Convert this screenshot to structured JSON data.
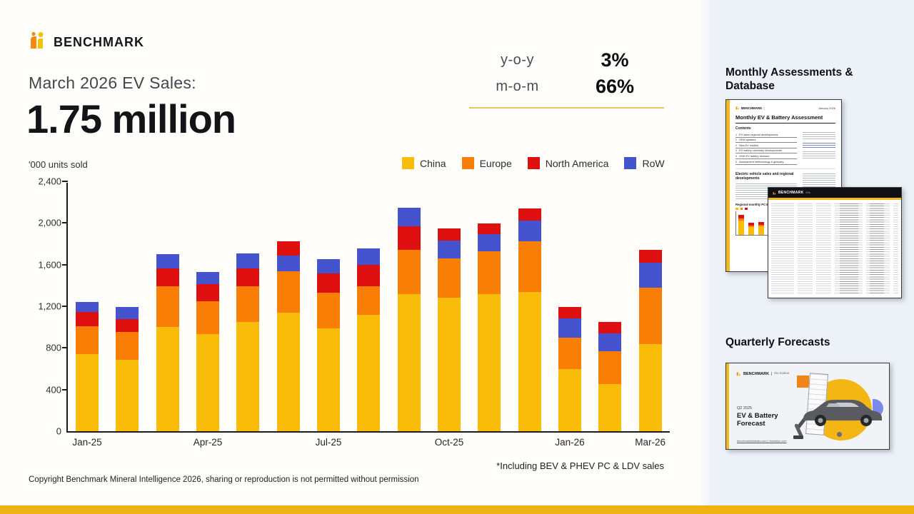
{
  "brand": {
    "name": "BENCHMARK",
    "icon_orange": "#f28a14",
    "icon_yellow": "#f7c10a"
  },
  "header": {
    "title_line": "March 2026 EV Sales:",
    "headline": "1.75 million"
  },
  "stats": {
    "rows": [
      {
        "label": "y-o-y",
        "value": "3%"
      },
      {
        "label": "m-o-m",
        "value": "66%"
      }
    ],
    "divider_color": "#ecc35c"
  },
  "chart_data": {
    "type": "bar",
    "stacked": true,
    "unit_label": "'000 units sold",
    "ylim": [
      0,
      2400
    ],
    "y_ticks": [
      {
        "value": 0,
        "label": "0"
      },
      {
        "value": 400,
        "label": "400"
      },
      {
        "value": 800,
        "label": "800"
      },
      {
        "value": 1200,
        "label": "1,200"
      },
      {
        "value": 1600,
        "label": "1,600"
      },
      {
        "value": 2000,
        "label": "2,000"
      },
      {
        "value": 2400,
        "label": "2,400"
      }
    ],
    "legend": [
      "China",
      "Europe",
      "North America",
      "RoW"
    ],
    "series_colors": {
      "China": "#f9bc08",
      "Europe": "#f87e06",
      "North America": "#df1010",
      "RoW": "#4653ce"
    },
    "note": "segments listed bottom-to-top as drawn",
    "bars": [
      {
        "label": "Jan-25",
        "segments": [
          [
            "China",
            740
          ],
          [
            "Europe",
            270
          ],
          [
            "North America",
            135
          ],
          [
            "RoW",
            95
          ]
        ]
      },
      {
        "label": "Feb-25",
        "segments": [
          [
            "China",
            685
          ],
          [
            "Europe",
            265
          ],
          [
            "North America",
            130
          ],
          [
            "RoW",
            110
          ]
        ]
      },
      {
        "label": "Mar-25",
        "segments": [
          [
            "China",
            1000
          ],
          [
            "Europe",
            395
          ],
          [
            "North America",
            170
          ],
          [
            "RoW",
            135
          ]
        ]
      },
      {
        "label": "Apr-25",
        "segments": [
          [
            "China",
            930
          ],
          [
            "Europe",
            320
          ],
          [
            "North America",
            160
          ],
          [
            "RoW",
            120
          ]
        ]
      },
      {
        "label": "May-25",
        "segments": [
          [
            "China",
            1050
          ],
          [
            "Europe",
            340
          ],
          [
            "North America",
            175
          ],
          [
            "RoW",
            145
          ]
        ]
      },
      {
        "label": "Jun-25",
        "segments": [
          [
            "China",
            1135
          ],
          [
            "Europe",
            400
          ],
          [
            "RoW",
            150
          ],
          [
            "North America",
            140
          ]
        ]
      },
      {
        "label": "Jul-25",
        "segments": [
          [
            "China",
            990
          ],
          [
            "Europe",
            340
          ],
          [
            "North America",
            185
          ],
          [
            "RoW",
            135
          ]
        ]
      },
      {
        "label": "Aug-25",
        "segments": [
          [
            "China",
            1120
          ],
          [
            "Europe",
            270
          ],
          [
            "North America",
            205
          ],
          [
            "RoW",
            160
          ]
        ]
      },
      {
        "label": "Sep-25",
        "segments": [
          [
            "China",
            1320
          ],
          [
            "Europe",
            420
          ],
          [
            "North America",
            230
          ],
          [
            "RoW",
            175
          ]
        ]
      },
      {
        "label": "Oct-25",
        "segments": [
          [
            "China",
            1285
          ],
          [
            "Europe",
            375
          ],
          [
            "RoW",
            170
          ],
          [
            "North America",
            115
          ]
        ]
      },
      {
        "label": "Nov-25",
        "segments": [
          [
            "China",
            1320
          ],
          [
            "Europe",
            405
          ],
          [
            "RoW",
            165
          ],
          [
            "North America",
            105
          ]
        ]
      },
      {
        "label": "Dec-25",
        "segments": [
          [
            "China",
            1340
          ],
          [
            "Europe",
            485
          ],
          [
            "RoW",
            200
          ],
          [
            "North America",
            115
          ]
        ]
      },
      {
        "label": "Jan-26",
        "segments": [
          [
            "China",
            595
          ],
          [
            "Europe",
            305
          ],
          [
            "RoW",
            185
          ],
          [
            "North America",
            105
          ]
        ]
      },
      {
        "label": "Feb-26",
        "segments": [
          [
            "China",
            455
          ],
          [
            "Europe",
            315
          ],
          [
            "RoW",
            170
          ],
          [
            "North America",
            110
          ]
        ]
      },
      {
        "label": "Mar-26",
        "segments": [
          [
            "China",
            840
          ],
          [
            "Europe",
            540
          ],
          [
            "RoW",
            235
          ],
          [
            "North America",
            130
          ]
        ]
      }
    ],
    "x_tick_labels": [
      {
        "index": 0,
        "label": "Jan-25"
      },
      {
        "index": 3,
        "label": "Apr-25"
      },
      {
        "index": 6,
        "label": "Jul-25"
      },
      {
        "index": 9,
        "label": "Oct-25"
      },
      {
        "index": 12,
        "label": "Jan-26"
      },
      {
        "index": 14,
        "label": "Mar-26"
      }
    ]
  },
  "footnote": "*Including BEV & PHEV PC & LDV sales",
  "copyright": "Copyright Benchmark Mineral Intelligence 2026, sharing or reproduction is not permitted without permission",
  "sidebar": {
    "monthly_heading": "Monthly Assessments & Database",
    "quarterly_heading": "Quarterly Forecasts",
    "report_thumb": {
      "logo": "BENCHMARK",
      "date": "January 2026",
      "title": "Monthly EV & Battery Assessment",
      "contents_label": "Contents",
      "toc": [
        "EV sales regional developments",
        "OEM updates",
        "New EV models",
        "EV battery chemistry developments",
        "GWh EV battery demand",
        "Assessment methodology & glossary"
      ],
      "section_heading": "Electric vehicle sales and regional developments",
      "mini_chart_heading": "Regional monthly PC EV sales"
    },
    "database_thumb": {
      "logo": "BENCHMARK",
      "sub": "EVs"
    },
    "forecast_thumb": {
      "logo": "BENCHMARK",
      "logo_sub": "rho motion",
      "quarter": "Q2 2025",
      "title": "EV & Battery Forecast",
      "links": "benchmarkminerals.com  |  rhomotion.com"
    }
  },
  "bottom_bar_color": "#eeb310"
}
